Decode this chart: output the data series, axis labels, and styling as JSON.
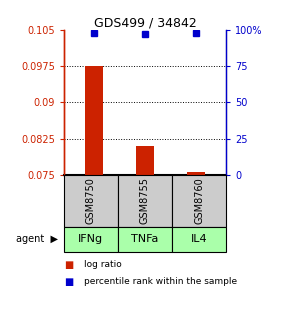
{
  "title": "GDS499 / 34842",
  "samples": [
    "GSM8750",
    "GSM8755",
    "GSM8760"
  ],
  "agents": [
    "IFNg",
    "TNFa",
    "IL4"
  ],
  "log_ratio_values": [
    0.0975,
    0.081,
    0.0755
  ],
  "log_ratio_base": 0.075,
  "percentile_values": [
    0.1045,
    0.1043,
    0.1044
  ],
  "ylim_left": [
    0.075,
    0.105
  ],
  "ylim_right": [
    0,
    100
  ],
  "yticks_left": [
    0.075,
    0.0825,
    0.09,
    0.0975,
    0.105
  ],
  "yticks_right": [
    0,
    25,
    50,
    75,
    100
  ],
  "ytick_labels_left": [
    "0.075",
    "0.0825",
    "0.09",
    "0.0975",
    "0.105"
  ],
  "ytick_labels_right": [
    "0",
    "25",
    "50",
    "75",
    "100%"
  ],
  "left_axis_color": "#cc2200",
  "right_axis_color": "#0000cc",
  "bar_color": "#cc2200",
  "dot_color": "#0000cc",
  "sample_box_color": "#cccccc",
  "agent_box_color": "#aaffaa",
  "bar_width": 0.35,
  "x_positions": [
    0,
    1,
    2
  ],
  "agent_label": "agent"
}
